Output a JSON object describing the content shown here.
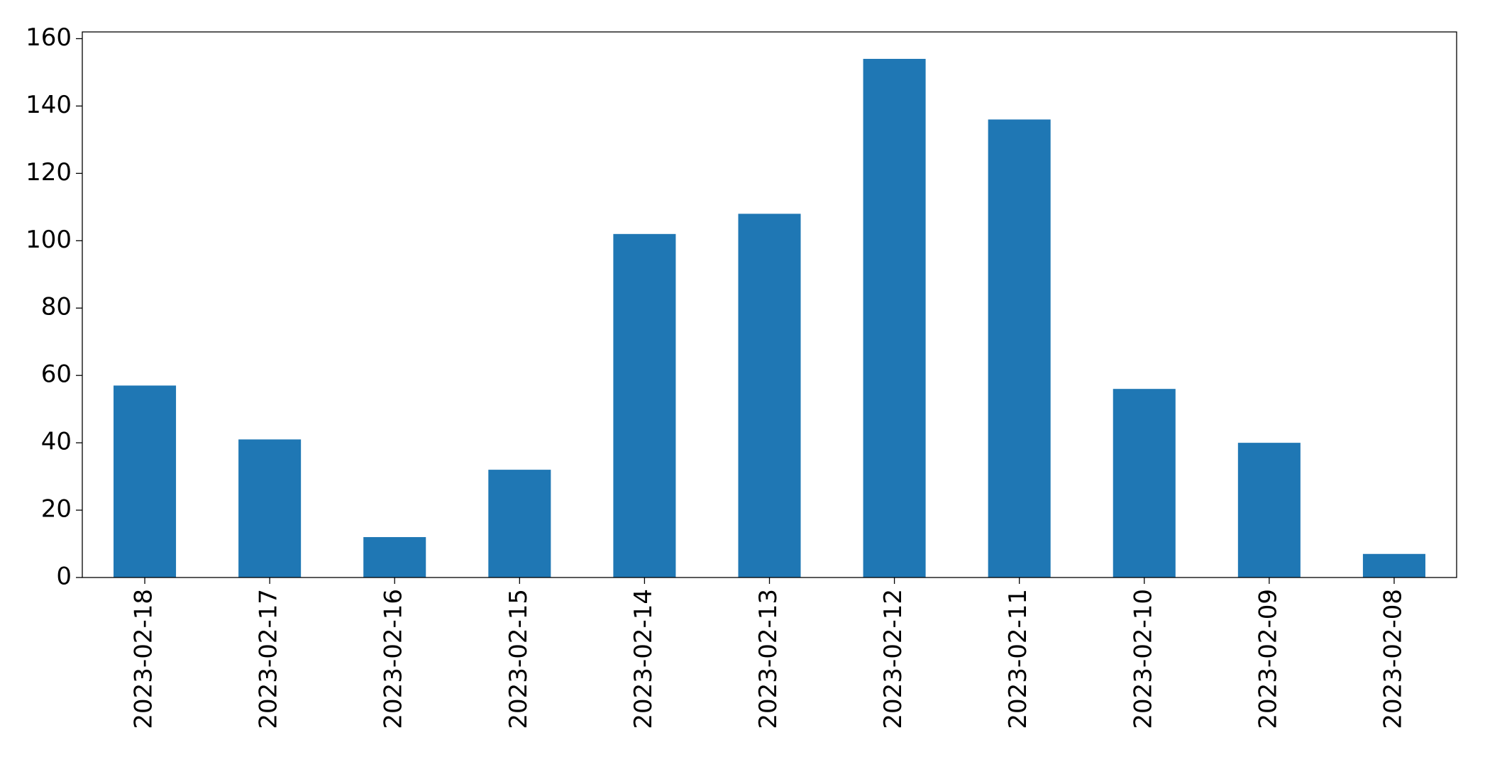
{
  "chart_data": {
    "type": "bar",
    "categories": [
      "2023-02-18",
      "2023-02-17",
      "2023-02-16",
      "2023-02-15",
      "2023-02-14",
      "2023-02-13",
      "2023-02-12",
      "2023-02-11",
      "2023-02-10",
      "2023-02-09",
      "2023-02-08"
    ],
    "values": [
      57,
      41,
      12,
      32,
      102,
      108,
      154,
      136,
      56,
      40,
      7
    ],
    "color": "#1f77b4",
    "ylim": [
      0,
      162
    ],
    "yticks": [
      0,
      20,
      40,
      60,
      80,
      100,
      120,
      140,
      160
    ],
    "grid": false
  }
}
